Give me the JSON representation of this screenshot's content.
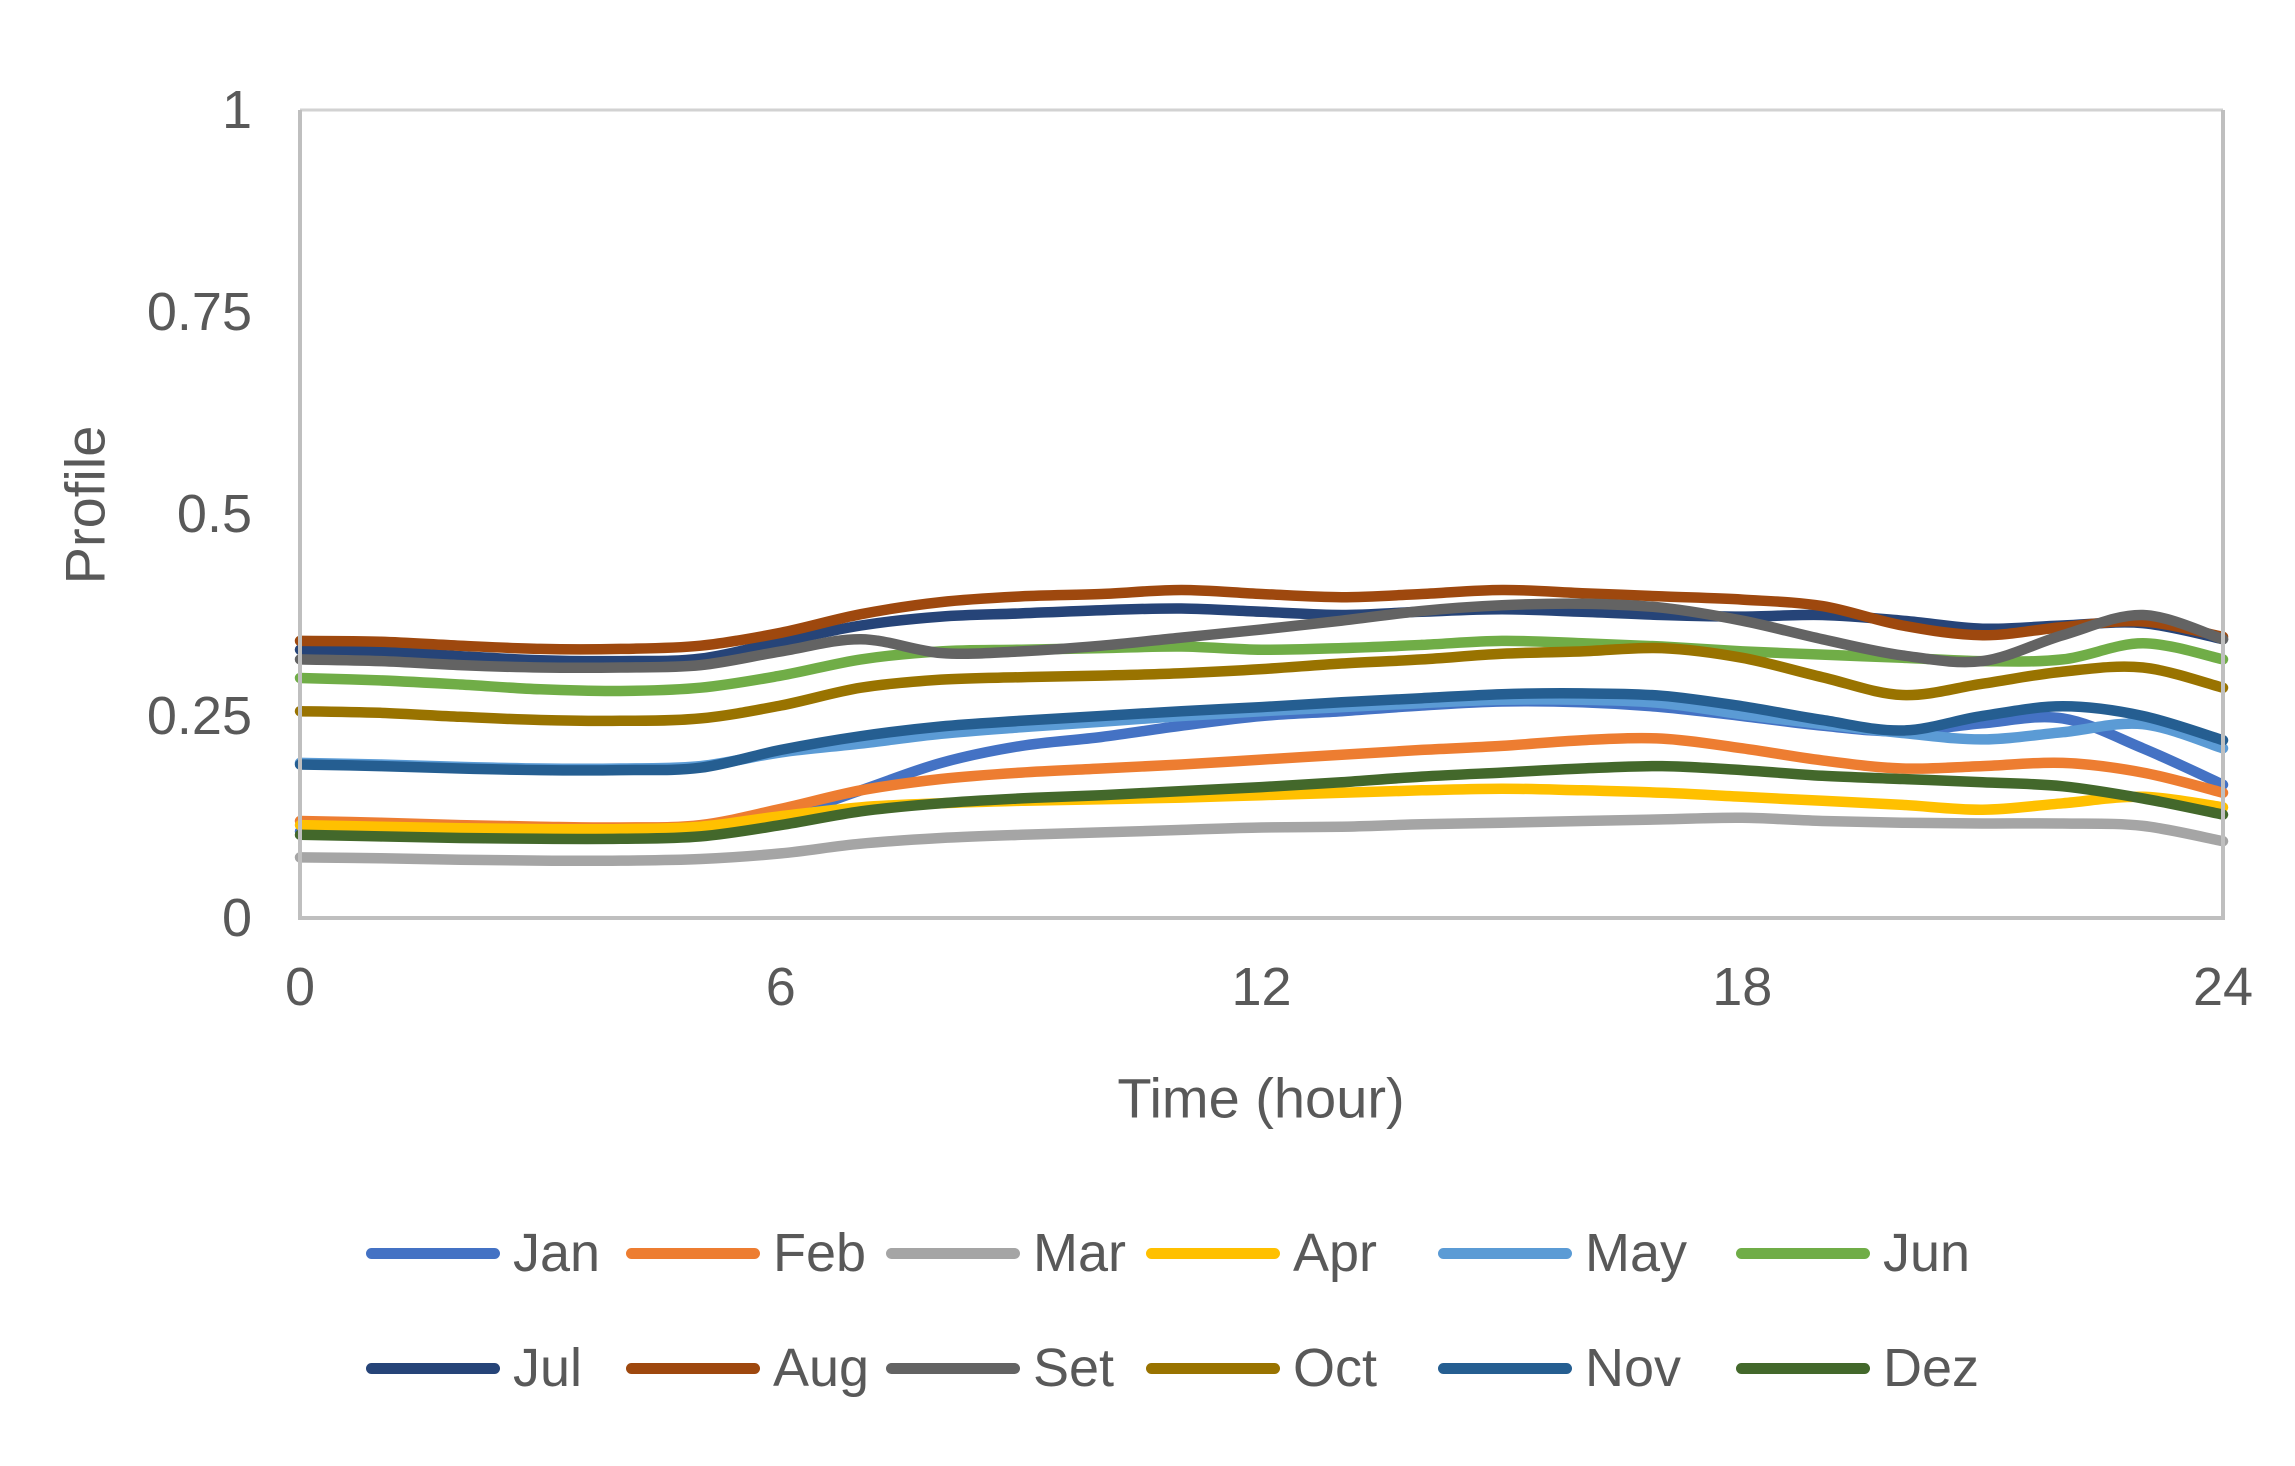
{
  "chart_data": {
    "type": "line",
    "title": "",
    "xlabel": "Time (hour)",
    "ylabel": "Profile",
    "xlim": [
      0,
      24
    ],
    "ylim": [
      0,
      1
    ],
    "x_ticks": [
      0,
      6,
      12,
      18,
      24
    ],
    "x_tick_labels": [
      "0",
      "6",
      "12",
      "18",
      "24"
    ],
    "y_ticks": [
      0,
      0.25,
      0.5,
      0.75,
      1
    ],
    "y_tick_labels": [
      "0",
      "0.25",
      "0.5",
      "0.75",
      "1"
    ],
    "grid": false,
    "smoothed": true,
    "legend_position": "bottom",
    "legend_rows": [
      [
        "Jan",
        "Feb",
        "Mar",
        "Apr",
        "May",
        "Jun"
      ],
      [
        "Jul",
        "Aug",
        "Set",
        "Oct",
        "Nov",
        "Dez"
      ]
    ],
    "axis_color": "#BFBFBF",
    "border_color": "#D2D2D2",
    "label_color": "#595959",
    "x": [
      0,
      1,
      2,
      3,
      4,
      5,
      6,
      7,
      8,
      9,
      10,
      11,
      12,
      13,
      14,
      15,
      16,
      17,
      18,
      19,
      20,
      21,
      22,
      23,
      24
    ],
    "series": [
      {
        "name": "Jan",
        "color": "#4472C4",
        "values": [
          0.107,
          0.106,
          0.104,
          0.103,
          0.103,
          0.106,
          0.125,
          0.158,
          0.192,
          0.213,
          0.224,
          0.238,
          0.25,
          0.256,
          0.263,
          0.268,
          0.267,
          0.261,
          0.25,
          0.238,
          0.231,
          0.241,
          0.247,
          0.21,
          0.165
        ]
      },
      {
        "name": "Feb",
        "color": "#ED7D31",
        "values": [
          0.12,
          0.118,
          0.115,
          0.113,
          0.112,
          0.115,
          0.135,
          0.158,
          0.172,
          0.18,
          0.185,
          0.19,
          0.196,
          0.202,
          0.208,
          0.213,
          0.22,
          0.222,
          0.21,
          0.195,
          0.185,
          0.188,
          0.192,
          0.18,
          0.155
        ]
      },
      {
        "name": "Mar",
        "color": "#A5A5A5",
        "values": [
          0.075,
          0.074,
          0.072,
          0.071,
          0.071,
          0.073,
          0.08,
          0.092,
          0.099,
          0.103,
          0.106,
          0.109,
          0.112,
          0.113,
          0.116,
          0.118,
          0.12,
          0.122,
          0.124,
          0.12,
          0.118,
          0.117,
          0.117,
          0.114,
          0.095
        ]
      },
      {
        "name": "Apr",
        "color": "#FFC000",
        "values": [
          0.115,
          0.113,
          0.111,
          0.11,
          0.11,
          0.113,
          0.126,
          0.137,
          0.142,
          0.145,
          0.147,
          0.149,
          0.152,
          0.155,
          0.158,
          0.16,
          0.158,
          0.155,
          0.15,
          0.145,
          0.14,
          0.134,
          0.142,
          0.15,
          0.137
        ]
      },
      {
        "name": "May",
        "color": "#5B9BD5",
        "values": [
          0.192,
          0.19,
          0.187,
          0.185,
          0.185,
          0.188,
          0.205,
          0.216,
          0.228,
          0.236,
          0.243,
          0.25,
          0.256,
          0.261,
          0.266,
          0.27,
          0.27,
          0.266,
          0.252,
          0.24,
          0.229,
          0.221,
          0.23,
          0.24,
          0.21
        ]
      },
      {
        "name": "Jun",
        "color": "#70AD47",
        "values": [
          0.297,
          0.294,
          0.289,
          0.283,
          0.281,
          0.285,
          0.3,
          0.32,
          0.33,
          0.332,
          0.334,
          0.336,
          0.332,
          0.334,
          0.338,
          0.343,
          0.34,
          0.336,
          0.33,
          0.326,
          0.322,
          0.318,
          0.32,
          0.34,
          0.32
        ]
      },
      {
        "name": "Jul",
        "color": "#264478",
        "values": [
          0.332,
          0.33,
          0.324,
          0.319,
          0.318,
          0.321,
          0.342,
          0.362,
          0.373,
          0.377,
          0.381,
          0.383,
          0.379,
          0.375,
          0.379,
          0.382,
          0.379,
          0.375,
          0.373,
          0.375,
          0.368,
          0.358,
          0.362,
          0.365,
          0.345
        ]
      },
      {
        "name": "Aug",
        "color": "#9E480E",
        "values": [
          0.343,
          0.342,
          0.337,
          0.333,
          0.333,
          0.337,
          0.353,
          0.376,
          0.391,
          0.398,
          0.401,
          0.406,
          0.401,
          0.397,
          0.401,
          0.406,
          0.402,
          0.398,
          0.394,
          0.386,
          0.362,
          0.35,
          0.36,
          0.367,
          0.348
        ]
      },
      {
        "name": "Set",
        "color": "#636363",
        "values": [
          0.32,
          0.318,
          0.313,
          0.31,
          0.31,
          0.313,
          0.33,
          0.345,
          0.328,
          0.33,
          0.337,
          0.347,
          0.357,
          0.368,
          0.38,
          0.387,
          0.389,
          0.384,
          0.368,
          0.345,
          0.325,
          0.318,
          0.35,
          0.375,
          0.345
        ]
      },
      {
        "name": "Oct",
        "color": "#997300",
        "values": [
          0.256,
          0.254,
          0.249,
          0.245,
          0.244,
          0.247,
          0.263,
          0.285,
          0.295,
          0.298,
          0.3,
          0.303,
          0.308,
          0.315,
          0.32,
          0.327,
          0.33,
          0.334,
          0.322,
          0.298,
          0.276,
          0.29,
          0.305,
          0.31,
          0.285
        ]
      },
      {
        "name": "Nov",
        "color": "#255E91",
        "values": [
          0.19,
          0.188,
          0.185,
          0.183,
          0.183,
          0.186,
          0.208,
          0.225,
          0.237,
          0.244,
          0.25,
          0.256,
          0.261,
          0.267,
          0.272,
          0.277,
          0.278,
          0.275,
          0.262,
          0.245,
          0.232,
          0.25,
          0.262,
          0.25,
          0.22
        ]
      },
      {
        "name": "Dez",
        "color": "#43682B",
        "values": [
          0.103,
          0.101,
          0.099,
          0.098,
          0.098,
          0.101,
          0.115,
          0.132,
          0.142,
          0.148,
          0.152,
          0.157,
          0.162,
          0.168,
          0.175,
          0.18,
          0.185,
          0.188,
          0.183,
          0.176,
          0.172,
          0.168,
          0.163,
          0.148,
          0.128
        ]
      }
    ]
  }
}
